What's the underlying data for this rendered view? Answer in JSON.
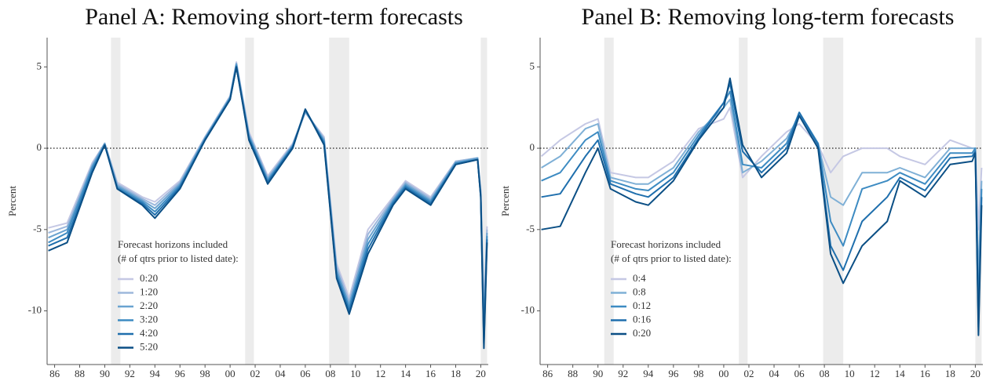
{
  "chart_data": [
    {
      "type": "line",
      "title": "Panel A: Removing short-term forecasts",
      "y_label": "Percent",
      "legend_title": [
        "Forecast horizons included",
        "(# of qtrs prior to listed date):"
      ],
      "x": [
        1985.5,
        1987,
        1989,
        1990,
        1991,
        1993,
        1994,
        1996,
        1998,
        2000,
        2000.5,
        2001.5,
        2003,
        2005,
        2006,
        2007.5,
        2008.5,
        2009.5,
        2011,
        2013,
        2014,
        2016,
        2018,
        2019.75,
        2020,
        2020.25,
        2020.5
      ],
      "series": [
        {
          "name": "0:20",
          "color": "#c5c8e4",
          "values": [
            -4.9,
            -4.6,
            -0.9,
            0.3,
            -2.1,
            -3.0,
            -3.3,
            -2.0,
            0.7,
            3.2,
            5.3,
            1.0,
            -1.7,
            0.3,
            2.2,
            0.7,
            -7.1,
            -9.2,
            -5.0,
            -3.0,
            -2.0,
            -3.0,
            -0.8,
            -0.6,
            -2.6,
            -10.0,
            -4.8
          ]
        },
        {
          "name": "1:20",
          "color": "#9db8dc",
          "values": [
            -5.2,
            -4.8,
            -1.0,
            0.3,
            -2.2,
            -3.1,
            -3.5,
            -2.1,
            0.7,
            3.2,
            5.2,
            0.9,
            -1.8,
            0.2,
            2.2,
            0.6,
            -7.3,
            -9.4,
            -5.3,
            -3.1,
            -2.1,
            -3.1,
            -0.8,
            -0.6,
            -2.7,
            -10.5,
            -5.0
          ]
        },
        {
          "name": "2:20",
          "color": "#6aa3d0",
          "values": [
            -5.5,
            -5.0,
            -1.1,
            0.3,
            -2.3,
            -3.2,
            -3.7,
            -2.2,
            0.6,
            3.1,
            5.2,
            0.8,
            -1.9,
            0.2,
            2.3,
            0.5,
            -7.5,
            -9.6,
            -5.6,
            -3.2,
            -2.2,
            -3.2,
            -0.9,
            -0.6,
            -2.8,
            -11.0,
            -5.2
          ]
        },
        {
          "name": "3:20",
          "color": "#3d8bc2",
          "values": [
            -5.8,
            -5.2,
            -1.2,
            0.2,
            -2.4,
            -3.3,
            -3.9,
            -2.3,
            0.6,
            3.1,
            5.1,
            0.7,
            -2.0,
            0.1,
            2.3,
            0.4,
            -7.7,
            -9.8,
            -5.9,
            -3.3,
            -2.3,
            -3.3,
            -0.9,
            -0.7,
            -2.9,
            -11.5,
            -5.4
          ]
        },
        {
          "name": "4:20",
          "color": "#1f6fad",
          "values": [
            -6.0,
            -5.5,
            -1.4,
            0.2,
            -2.5,
            -3.4,
            -4.1,
            -2.4,
            0.5,
            3.0,
            5.0,
            0.6,
            -2.1,
            0.1,
            2.4,
            0.3,
            -7.9,
            -10.0,
            -6.2,
            -3.4,
            -2.4,
            -3.4,
            -1.0,
            -0.7,
            -3.0,
            -12.0,
            -5.6
          ]
        },
        {
          "name": "5:20",
          "color": "#0b4f85",
          "values": [
            -6.3,
            -5.8,
            -1.5,
            0.2,
            -2.5,
            -3.5,
            -4.3,
            -2.5,
            0.5,
            3.0,
            5.0,
            0.5,
            -2.2,
            0.0,
            2.4,
            0.2,
            -8.0,
            -10.2,
            -6.5,
            -3.5,
            -2.5,
            -3.5,
            -1.0,
            -0.7,
            -3.0,
            -12.3,
            -5.8
          ]
        }
      ],
      "shaded_periods": [
        [
          1990.5,
          1991.25
        ],
        [
          2001.2,
          2001.9
        ],
        [
          2007.9,
          2009.5
        ],
        [
          2020.0,
          2020.5
        ]
      ],
      "reference_line": 0,
      "xlim": [
        1985.4,
        2020.6
      ],
      "ylim": [
        -13.3,
        6.8
      ],
      "xticks": [
        {
          "value": 1986,
          "label": "86"
        },
        {
          "value": 1988,
          "label": "88"
        },
        {
          "value": 1990,
          "label": "90"
        },
        {
          "value": 1992,
          "label": "92"
        },
        {
          "value": 1994,
          "label": "94"
        },
        {
          "value": 1996,
          "label": "96"
        },
        {
          "value": 1998,
          "label": "98"
        },
        {
          "value": 2000,
          "label": "00"
        },
        {
          "value": 2002,
          "label": "02"
        },
        {
          "value": 2004,
          "label": "04"
        },
        {
          "value": 2006,
          "label": "06"
        },
        {
          "value": 2008,
          "label": "08"
        },
        {
          "value": 2010,
          "label": "10"
        },
        {
          "value": 2012,
          "label": "12"
        },
        {
          "value": 2014,
          "label": "14"
        },
        {
          "value": 2016,
          "label": "16"
        },
        {
          "value": 2018,
          "label": "18"
        },
        {
          "value": 2020,
          "label": "20"
        }
      ],
      "yticks": [
        5,
        0,
        -5,
        -10
      ]
    },
    {
      "type": "line",
      "title": "Panel B: Removing long-term forecasts",
      "y_label": "Percent",
      "legend_title": [
        "Forecast horizons included",
        "(# of qtrs prior to listed date):"
      ],
      "x": [
        1985.5,
        1987,
        1989,
        1990,
        1991,
        1993,
        1994,
        1996,
        1998,
        2000,
        2000.5,
        2001.5,
        2003,
        2005,
        2006,
        2007.5,
        2008.5,
        2009.5,
        2011,
        2013,
        2014,
        2016,
        2018,
        2019.75,
        2020,
        2020.25,
        2020.5
      ],
      "series": [
        {
          "name": "0:4",
          "color": "#c5c8e4",
          "values": [
            -0.5,
            0.5,
            1.5,
            1.8,
            -1.5,
            -1.8,
            -1.8,
            -0.8,
            1.2,
            1.8,
            2.5,
            -1.8,
            -0.5,
            1.0,
            1.5,
            0.2,
            -1.5,
            -0.5,
            0.0,
            0.0,
            -0.5,
            -1.0,
            0.5,
            0.0,
            0.0,
            -5.0,
            -1.2
          ]
        },
        {
          "name": "0:8",
          "color": "#7fb0d6",
          "values": [
            -1.2,
            -0.5,
            1.2,
            1.5,
            -1.8,
            -2.2,
            -2.2,
            -1.2,
            1.0,
            2.5,
            3.0,
            -1.5,
            -0.8,
            0.6,
            2.0,
            0.3,
            -3.0,
            -3.5,
            -1.5,
            -1.5,
            -1.2,
            -1.8,
            0.0,
            0.0,
            0.0,
            -8.0,
            -2.0
          ]
        },
        {
          "name": "0:12",
          "color": "#3d8bc2",
          "values": [
            -2.0,
            -1.5,
            0.5,
            1.0,
            -2.0,
            -2.5,
            -2.6,
            -1.5,
            0.8,
            2.8,
            3.5,
            -1.0,
            -1.2,
            0.3,
            2.2,
            0.3,
            -4.5,
            -6.0,
            -2.5,
            -2.0,
            -1.5,
            -2.2,
            -0.3,
            -0.3,
            0.0,
            -10.0,
            -2.5
          ]
        },
        {
          "name": "0:16",
          "color": "#1f6fad",
          "values": [
            -3.0,
            -2.8,
            -0.5,
            0.5,
            -2.2,
            -2.8,
            -3.0,
            -1.8,
            0.6,
            2.8,
            4.0,
            -0.2,
            -1.5,
            0.0,
            2.2,
            0.2,
            -6.0,
            -7.5,
            -4.5,
            -3.0,
            -1.8,
            -2.6,
            -0.6,
            -0.5,
            -0.2,
            -11.0,
            -3.0
          ]
        },
        {
          "name": "0:20",
          "color": "#0b4f85",
          "values": [
            -5.0,
            -4.8,
            -1.5,
            0.0,
            -2.5,
            -3.3,
            -3.5,
            -2.0,
            0.5,
            2.5,
            4.3,
            0.2,
            -1.8,
            -0.3,
            2.0,
            0.0,
            -6.5,
            -8.3,
            -6.0,
            -4.5,
            -2.0,
            -3.0,
            -1.0,
            -0.8,
            -0.3,
            -11.5,
            -3.5
          ]
        }
      ],
      "shaded_periods": [
        [
          1990.5,
          1991.25
        ],
        [
          2001.2,
          2001.9
        ],
        [
          2007.9,
          2009.5
        ],
        [
          2020.0,
          2020.5
        ]
      ],
      "reference_line": 0,
      "xlim": [
        1985.4,
        2020.6
      ],
      "ylim": [
        -13.3,
        6.8
      ],
      "xticks": [
        {
          "value": 1986,
          "label": "86"
        },
        {
          "value": 1988,
          "label": "88"
        },
        {
          "value": 1990,
          "label": "90"
        },
        {
          "value": 1992,
          "label": "92"
        },
        {
          "value": 1994,
          "label": "94"
        },
        {
          "value": 1996,
          "label": "96"
        },
        {
          "value": 1998,
          "label": "98"
        },
        {
          "value": 2000,
          "label": "00"
        },
        {
          "value": 2002,
          "label": "02"
        },
        {
          "value": 2004,
          "label": "04"
        },
        {
          "value": 2006,
          "label": "06"
        },
        {
          "value": 2008,
          "label": "08"
        },
        {
          "value": 2010,
          "label": "10"
        },
        {
          "value": 2012,
          "label": "12"
        },
        {
          "value": 2014,
          "label": "14"
        },
        {
          "value": 2016,
          "label": "16"
        },
        {
          "value": 2018,
          "label": "18"
        },
        {
          "value": 2020,
          "label": "20"
        }
      ],
      "yticks": [
        5,
        0,
        -5,
        -10
      ]
    }
  ]
}
